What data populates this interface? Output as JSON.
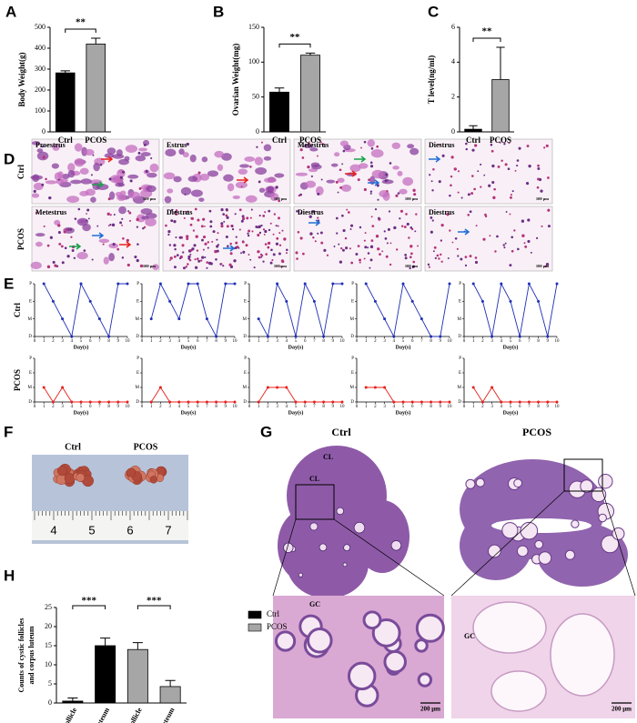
{
  "chart_data": [
    {
      "type": "bar",
      "categories": [
        "Ctrl",
        "PCOS"
      ],
      "values": [
        282,
        420
      ],
      "errors": [
        10,
        28
      ],
      "colors": [
        "#000000",
        "#a6a6a6"
      ],
      "ylim": [
        0,
        500
      ],
      "yticks": [
        0,
        100,
        200,
        300,
        400,
        500
      ],
      "ylabel": "Body Weight(g)",
      "significance": "**"
    },
    {
      "type": "bar",
      "categories": [
        "Ctrl",
        "PCOS"
      ],
      "values": [
        57,
        110
      ],
      "errors": [
        6,
        3
      ],
      "colors": [
        "#000000",
        "#a6a6a6"
      ],
      "ylim": [
        0,
        150
      ],
      "yticks": [
        0,
        50,
        100,
        150
      ],
      "ylabel": "Ovarian Weight(mg)",
      "significance": "**"
    },
    {
      "type": "bar",
      "categories": [
        "Ctrl",
        "PCOS"
      ],
      "values": [
        0.15,
        3.0
      ],
      "errors": [
        0.2,
        1.85
      ],
      "colors": [
        "#000000",
        "#a6a6a6"
      ],
      "ylim": [
        0,
        6
      ],
      "yticks": [
        0,
        2,
        4,
        6
      ],
      "ylabel": "T level(ng/ml)",
      "significance": "**"
    },
    {
      "type": "line",
      "ylabel": "Ctrl",
      "xlabel": "Day(s)",
      "x": [
        1,
        2,
        3,
        4,
        5,
        6,
        7,
        8,
        9,
        10
      ],
      "xlim": [
        0,
        10
      ],
      "xticks": [
        0,
        1,
        2,
        3,
        4,
        5,
        6,
        7,
        8,
        9,
        10
      ],
      "ylim": [
        0,
        3
      ],
      "yticks": [
        {
          "value": 0,
          "label": "D"
        },
        {
          "value": 1,
          "label": "M"
        },
        {
          "value": 2,
          "label": "E"
        },
        {
          "value": 3,
          "label": "P"
        }
      ],
      "series": [
        {
          "color": "#1f2fb5",
          "values": [
            3,
            2,
            1,
            0,
            3,
            2,
            1,
            0,
            3,
            3
          ]
        }
      ]
    },
    {
      "type": "line",
      "xlabel": "Day(s)",
      "x": [
        1,
        2,
        3,
        4,
        5,
        6,
        7,
        8,
        9,
        10
      ],
      "xlim": [
        0,
        10
      ],
      "xticks": [
        0,
        1,
        2,
        3,
        4,
        5,
        6,
        7,
        8,
        9,
        10
      ],
      "ylim": [
        0,
        3
      ],
      "yticks": [
        {
          "value": 0,
          "label": "D"
        },
        {
          "value": 1,
          "label": "M"
        },
        {
          "value": 2,
          "label": "E"
        },
        {
          "value": 3,
          "label": "P"
        }
      ],
      "series": [
        {
          "color": "#1f2fb5",
          "values": [
            1,
            3,
            2,
            1,
            3,
            3,
            1,
            0,
            3,
            3
          ]
        }
      ]
    },
    {
      "type": "line",
      "xlabel": "Day(s)",
      "x": [
        1,
        2,
        3,
        4,
        5,
        6,
        7,
        8,
        9,
        10
      ],
      "xlim": [
        0,
        10
      ],
      "xticks": [
        0,
        1,
        2,
        3,
        4,
        5,
        6,
        7,
        8,
        9,
        10
      ],
      "ylim": [
        0,
        3
      ],
      "yticks": [
        {
          "value": 0,
          "label": "D"
        },
        {
          "value": 1,
          "label": "M"
        },
        {
          "value": 2,
          "label": "E"
        },
        {
          "value": 3,
          "label": "P"
        }
      ],
      "series": [
        {
          "color": "#1f2fb5",
          "values": [
            1,
            0,
            3,
            2,
            0,
            3,
            2,
            0,
            3,
            3
          ]
        }
      ]
    },
    {
      "type": "line",
      "xlabel": "Day(s)",
      "x": [
        1,
        2,
        3,
        4,
        5,
        6,
        7,
        8,
        9,
        10
      ],
      "xlim": [
        0,
        10
      ],
      "xticks": [
        0,
        1,
        2,
        3,
        4,
        5,
        6,
        7,
        8,
        9,
        10
      ],
      "ylim": [
        0,
        3
      ],
      "yticks": [
        {
          "value": 0,
          "label": "D"
        },
        {
          "value": 1,
          "label": "M"
        },
        {
          "value": 2,
          "label": "E"
        },
        {
          "value": 3,
          "label": "P"
        }
      ],
      "series": [
        {
          "color": "#1f2fb5",
          "values": [
            3,
            2,
            1,
            0,
            3,
            2,
            1,
            0,
            0,
            3
          ]
        }
      ]
    },
    {
      "type": "line",
      "xlabel": "Day(s)",
      "x": [
        1,
        2,
        3,
        4,
        5,
        6,
        7,
        8,
        9,
        10
      ],
      "xlim": [
        0,
        10
      ],
      "xticks": [
        0,
        1,
        2,
        3,
        4,
        5,
        6,
        7,
        8,
        9,
        10
      ],
      "ylim": [
        0,
        3
      ],
      "yticks": [
        {
          "value": 0,
          "label": "D"
        },
        {
          "value": 1,
          "label": "M"
        },
        {
          "value": 2,
          "label": "E"
        },
        {
          "value": 3,
          "label": "P"
        }
      ],
      "series": [
        {
          "color": "#1f2fb5",
          "values": [
            3,
            2,
            0,
            3,
            2,
            0,
            3,
            2,
            0,
            3
          ]
        }
      ]
    },
    {
      "type": "line",
      "ylabel": "PCOS",
      "xlabel": "Day(s)",
      "x": [
        1,
        2,
        3,
        4,
        5,
        6,
        7,
        8,
        9,
        10
      ],
      "xlim": [
        0,
        10
      ],
      "xticks": [
        0,
        1,
        2,
        3,
        4,
        5,
        6,
        7,
        8,
        9,
        10
      ],
      "ylim": [
        0,
        3
      ],
      "yticks": [
        {
          "value": 0,
          "label": "D"
        },
        {
          "value": 1,
          "label": "M"
        },
        {
          "value": 2,
          "label": "E"
        },
        {
          "value": 3,
          "label": "P"
        }
      ],
      "series": [
        {
          "color": "#e8201c",
          "values": [
            1,
            0,
            1,
            0,
            0,
            0,
            0,
            0,
            0,
            0
          ]
        }
      ]
    },
    {
      "type": "line",
      "xlabel": "Day(s)",
      "x": [
        1,
        2,
        3,
        4,
        5,
        6,
        7,
        8,
        9,
        10
      ],
      "xlim": [
        0,
        10
      ],
      "xticks": [
        0,
        1,
        2,
        3,
        4,
        5,
        6,
        7,
        8,
        9,
        10
      ],
      "ylim": [
        0,
        3
      ],
      "yticks": [
        {
          "value": 0,
          "label": "D"
        },
        {
          "value": 1,
          "label": "M"
        },
        {
          "value": 2,
          "label": "E"
        },
        {
          "value": 3,
          "label": "P"
        }
      ],
      "series": [
        {
          "color": "#e8201c",
          "values": [
            0,
            1,
            0,
            0,
            0,
            0,
            0,
            0,
            0,
            0
          ]
        }
      ]
    },
    {
      "type": "line",
      "xlabel": "Day(s)",
      "x": [
        1,
        2,
        3,
        4,
        5,
        6,
        7,
        8,
        9,
        10
      ],
      "xlim": [
        0,
        10
      ],
      "xticks": [
        0,
        1,
        2,
        3,
        4,
        5,
        6,
        7,
        8,
        9,
        10
      ],
      "ylim": [
        0,
        3
      ],
      "yticks": [
        {
          "value": 0,
          "label": "D"
        },
        {
          "value": 1,
          "label": "M"
        },
        {
          "value": 2,
          "label": "E"
        },
        {
          "value": 3,
          "label": "P"
        }
      ],
      "series": [
        {
          "color": "#e8201c",
          "values": [
            0,
            1,
            1,
            1,
            0,
            0,
            0,
            0,
            0,
            0
          ]
        }
      ]
    },
    {
      "type": "line",
      "xlabel": "Day(s)",
      "x": [
        1,
        2,
        3,
        4,
        5,
        6,
        7,
        8,
        9,
        10
      ],
      "xlim": [
        0,
        10
      ],
      "xticks": [
        0,
        1,
        2,
        3,
        4,
        5,
        6,
        7,
        8,
        9,
        10
      ],
      "ylim": [
        0,
        3
      ],
      "yticks": [
        {
          "value": 0,
          "label": "D"
        },
        {
          "value": 1,
          "label": "M"
        },
        {
          "value": 2,
          "label": "E"
        },
        {
          "value": 3,
          "label": "P"
        }
      ],
      "series": [
        {
          "color": "#e8201c",
          "values": [
            1,
            1,
            1,
            0,
            0,
            0,
            0,
            0,
            0,
            0
          ]
        }
      ]
    },
    {
      "type": "line",
      "xlabel": "Day(s)",
      "x": [
        1,
        2,
        3,
        4,
        5,
        6,
        7,
        8,
        9,
        10
      ],
      "xlim": [
        0,
        10
      ],
      "xticks": [
        0,
        1,
        2,
        3,
        4,
        5,
        6,
        7,
        8,
        9,
        10
      ],
      "ylim": [
        0,
        3
      ],
      "yticks": [
        {
          "value": 0,
          "label": "D"
        },
        {
          "value": 1,
          "label": "M"
        },
        {
          "value": 2,
          "label": "E"
        },
        {
          "value": 3,
          "label": "P"
        }
      ],
      "series": [
        {
          "color": "#e8201c",
          "values": [
            1,
            0,
            1,
            0,
            0,
            0,
            0,
            0,
            0,
            0
          ]
        }
      ]
    },
    {
      "type": "bar",
      "categories": [
        "Cystic follicle",
        "Corpus luteum",
        "Cystic follicle",
        "Corpus luteum"
      ],
      "series": [
        {
          "name": "Ctrl",
          "color": "#000000",
          "values": [
            0.5,
            15,
            null,
            null
          ],
          "errors": [
            0.8,
            2,
            null,
            null
          ]
        },
        {
          "name": "PCOS",
          "color": "#a6a6a6",
          "values": [
            null,
            null,
            14,
            4.3
          ],
          "errors": [
            null,
            null,
            1.8,
            1.6
          ]
        }
      ],
      "ylim": [
        0,
        25
      ],
      "yticks": [
        0,
        5,
        10,
        15,
        20,
        25
      ],
      "ylabel": [
        "Counts of cystic follicles",
        "and corpus luteum"
      ],
      "significance": [
        "***",
        "***"
      ]
    }
  ],
  "figure": {
    "panel_labels": [
      "A",
      "B",
      "C",
      "D",
      "E",
      "F",
      "G",
      "H"
    ],
    "d": {
      "row_labels": [
        "Ctrl",
        "PCOS"
      ],
      "tiles": [
        {
          "label": "Proestrus",
          "scale": "100 μm"
        },
        {
          "label": "Estrus",
          "scale": "100 μm"
        },
        {
          "label": "Metestrus",
          "scale": "100 μm"
        },
        {
          "label": "Diestrus",
          "scale": "100 μm"
        },
        {
          "label": "Metestrus",
          "scale": "100 μm"
        },
        {
          "label": "Diestrus",
          "scale": "100 μm"
        },
        {
          "label": "Diestrus",
          "scale": "100 μm"
        },
        {
          "label": "Diestrus",
          "scale": "100 μm"
        }
      ]
    },
    "f": {
      "labels": [
        "Ctrl",
        "PCOS"
      ],
      "ruler": [
        "4",
        "5",
        "6",
        "7"
      ]
    },
    "g": {
      "labels": [
        "Ctrl",
        "PCOS"
      ],
      "annotations": [
        "CL",
        "CL",
        "GC",
        "GC"
      ],
      "scales": [
        "200 μm",
        "200 μm"
      ]
    }
  }
}
